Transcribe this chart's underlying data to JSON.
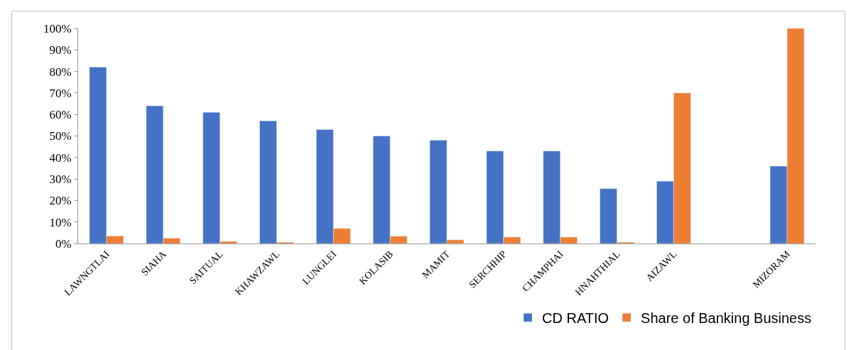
{
  "chart_data": {
    "type": "bar",
    "categories": [
      "LAWNGTLAI",
      "SIAHA",
      "SAITUAL",
      "KHAWZAWL",
      "LUNGLEI",
      "KOLASIB",
      "MAMIT",
      "SERCHHIP",
      "CHAMPHAI",
      "HNAHTHIAL",
      "AIZAWL",
      null,
      "MIZORAM"
    ],
    "series": [
      {
        "name": "CD RATIO",
        "color": "#4472c4",
        "values": [
          82,
          64,
          61,
          57,
          53,
          50,
          48,
          43,
          43,
          25.5,
          29,
          null,
          36
        ]
      },
      {
        "name": "Share of Banking Business",
        "color": "#ed7d31",
        "values": [
          3.5,
          2.5,
          1,
          0.6,
          7,
          3.4,
          1.7,
          3,
          3,
          0.6,
          70,
          null,
          100
        ]
      }
    ],
    "ylim": [
      0,
      100
    ],
    "yticks": [
      {
        "value": 0,
        "label": "0%"
      },
      {
        "value": 10,
        "label": "10%"
      },
      {
        "value": 20,
        "label": "20%"
      },
      {
        "value": 30,
        "label": "30%"
      },
      {
        "value": 40,
        "label": "40%"
      },
      {
        "value": 50,
        "label": "50%"
      },
      {
        "value": 60,
        "label": "60%"
      },
      {
        "value": 70,
        "label": "70%"
      },
      {
        "value": 80,
        "label": "80%"
      },
      {
        "value": 90,
        "label": "90%"
      },
      {
        "value": 100,
        "label": "100%"
      }
    ],
    "legend": "bottom right"
  }
}
